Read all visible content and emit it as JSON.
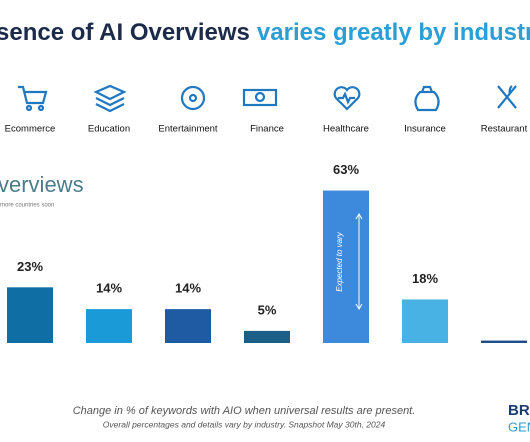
{
  "chart_data": {
    "type": "bar",
    "title_part1": "sence of AI Overviews",
    "title_part2": "varies greatly by industry",
    "logo_text": "verviews",
    "logo_subtext": "more countries soon",
    "categories": [
      "Ecommerce",
      "Education",
      "Entertainment",
      "Finance",
      "Healthcare",
      "Insurance",
      "Restaurant"
    ],
    "values": [
      23,
      14,
      14,
      5,
      63,
      18,
      1
    ],
    "value_labels": [
      "23%",
      "14%",
      "14%",
      "5%",
      "63%",
      "18%",
      null
    ],
    "colors": [
      "#0f6ea4",
      "#1a9ad6",
      "#1f5ba2",
      "#1b5f86",
      "#3d89db",
      "#48b2e4",
      "#1f4e8c"
    ],
    "annotation": "Expected to vary",
    "caption": "Change in % of keywords with AIO when universal results are present.",
    "subcaption": "Overall percentages and details vary by industry. Snapshot May 30th, 2024",
    "brand_line1": "BRI",
    "brand_line2": "GENE"
  }
}
